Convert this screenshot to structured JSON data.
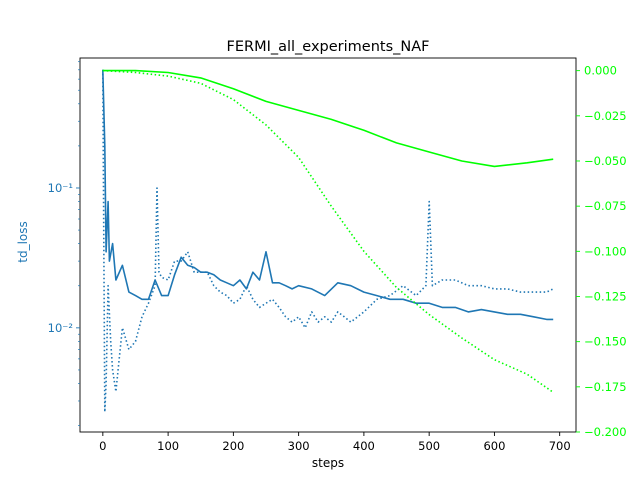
{
  "chart_data": {
    "type": "line",
    "title": "FERMI_all_experiments_NAF",
    "xlabel": "steps",
    "ylabel_left": "td_loss",
    "ylabel_right": "",
    "x_ticks": [
      0,
      100,
      200,
      300,
      400,
      500,
      600,
      700
    ],
    "xlim": [
      -35,
      725
    ],
    "left_axis": {
      "scale": "log",
      "ylim": [
        0.0018,
        0.85
      ],
      "major_ticks": [
        {
          "value": 0.1,
          "label": "10⁻¹"
        },
        {
          "value": 0.01,
          "label": "10⁻²"
        }
      ],
      "color": "#1f77b4"
    },
    "right_axis": {
      "scale": "linear",
      "ylim": [
        -0.2,
        0.007
      ],
      "ticks": [
        0.0,
        -0.025,
        -0.05,
        -0.075,
        -0.1,
        -0.125,
        -0.15,
        -0.175,
        -0.2
      ],
      "tick_labels": [
        "0.000",
        "−0.025",
        "−0.050",
        "−0.075",
        "−0.100",
        "−0.125",
        "−0.150",
        "−0.175",
        "−0.200"
      ],
      "color": "#00ff00"
    },
    "grid": false,
    "legend": "none",
    "series": [
      {
        "axis": "left",
        "color": "#1f77b4",
        "style": "solid",
        "x": [
          0,
          3,
          5,
          8,
          10,
          15,
          20,
          30,
          40,
          50,
          60,
          70,
          80,
          90,
          100,
          110,
          120,
          130,
          140,
          150,
          160,
          170,
          180,
          190,
          200,
          210,
          220,
          230,
          240,
          250,
          260,
          270,
          280,
          290,
          300,
          320,
          340,
          360,
          380,
          400,
          420,
          440,
          460,
          480,
          500,
          520,
          540,
          560,
          580,
          600,
          620,
          640,
          660,
          680,
          690
        ],
        "y": [
          0.7,
          0.2,
          0.035,
          0.08,
          0.03,
          0.04,
          0.022,
          0.028,
          0.018,
          0.017,
          0.016,
          0.016,
          0.022,
          0.017,
          0.017,
          0.024,
          0.032,
          0.028,
          0.027,
          0.025,
          0.025,
          0.024,
          0.022,
          0.021,
          0.02,
          0.022,
          0.019,
          0.025,
          0.022,
          0.035,
          0.021,
          0.021,
          0.02,
          0.019,
          0.02,
          0.019,
          0.017,
          0.021,
          0.02,
          0.018,
          0.017,
          0.016,
          0.016,
          0.015,
          0.015,
          0.014,
          0.014,
          0.013,
          0.0135,
          0.013,
          0.0125,
          0.0125,
          0.012,
          0.0115,
          0.0115
        ]
      },
      {
        "axis": "left",
        "color": "#1f77b4",
        "style": "dotted",
        "x": [
          0,
          3,
          5,
          8,
          12,
          15,
          20,
          25,
          30,
          40,
          50,
          60,
          70,
          80,
          83,
          86,
          90,
          100,
          110,
          120,
          130,
          140,
          150,
          160,
          170,
          180,
          190,
          200,
          210,
          220,
          230,
          240,
          250,
          260,
          270,
          280,
          290,
          300,
          310,
          320,
          330,
          340,
          350,
          360,
          370,
          380,
          400,
          420,
          440,
          460,
          480,
          495,
          500,
          505,
          520,
          540,
          560,
          580,
          600,
          620,
          640,
          660,
          680,
          690
        ],
        "y": [
          0.7,
          0.0025,
          0.004,
          0.02,
          0.008,
          0.005,
          0.0035,
          0.006,
          0.01,
          0.007,
          0.008,
          0.012,
          0.015,
          0.02,
          0.1,
          0.025,
          0.023,
          0.022,
          0.03,
          0.03,
          0.035,
          0.025,
          0.025,
          0.025,
          0.02,
          0.018,
          0.017,
          0.015,
          0.016,
          0.02,
          0.016,
          0.014,
          0.015,
          0.016,
          0.014,
          0.012,
          0.011,
          0.012,
          0.01,
          0.013,
          0.011,
          0.012,
          0.011,
          0.013,
          0.012,
          0.011,
          0.013,
          0.016,
          0.017,
          0.02,
          0.017,
          0.02,
          0.08,
          0.02,
          0.022,
          0.022,
          0.02,
          0.02,
          0.019,
          0.019,
          0.018,
          0.018,
          0.018,
          0.019
        ]
      },
      {
        "axis": "right",
        "color": "#00ff00",
        "style": "solid",
        "x": [
          0,
          50,
          100,
          150,
          200,
          250,
          300,
          350,
          400,
          450,
          500,
          550,
          600,
          650,
          690
        ],
        "y": [
          0.0,
          0.0,
          -0.001,
          -0.004,
          -0.01,
          -0.017,
          -0.022,
          -0.027,
          -0.033,
          -0.04,
          -0.045,
          -0.05,
          -0.053,
          -0.051,
          -0.049
        ]
      },
      {
        "axis": "right",
        "color": "#00ff00",
        "style": "dotted",
        "x": [
          0,
          50,
          100,
          150,
          200,
          250,
          300,
          350,
          400,
          450,
          500,
          550,
          600,
          650,
          690
        ],
        "y": [
          0.0,
          -0.001,
          -0.003,
          -0.007,
          -0.016,
          -0.03,
          -0.048,
          -0.075,
          -0.1,
          -0.12,
          -0.135,
          -0.148,
          -0.16,
          -0.168,
          -0.178
        ]
      }
    ]
  }
}
